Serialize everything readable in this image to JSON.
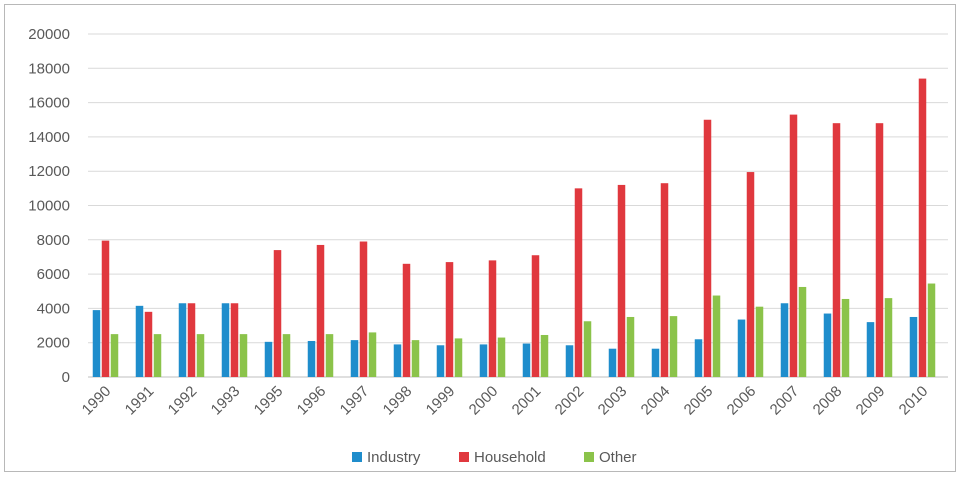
{
  "chart_data": {
    "type": "bar",
    "title": "",
    "xlabel": "",
    "ylabel": "",
    "ylim": [
      0,
      20000
    ],
    "yticks": [
      0,
      2000,
      4000,
      6000,
      8000,
      10000,
      12000,
      14000,
      16000,
      18000,
      20000
    ],
    "categories": [
      "1990",
      "1991",
      "1992",
      "1993",
      "1995",
      "1996",
      "1997",
      "1998",
      "1999",
      "2000",
      "2001",
      "2002",
      "2003",
      "2004",
      "2005",
      "2006",
      "2007",
      "2008",
      "2009",
      "2010"
    ],
    "series": [
      {
        "name": "Industry",
        "color": "#1f8dcc",
        "values": [
          3900,
          4150,
          4300,
          4300,
          2050,
          2100,
          2150,
          1900,
          1850,
          1900,
          1950,
          1850,
          1650,
          1650,
          2200,
          3350,
          4300,
          3700,
          3200,
          3500
        ]
      },
      {
        "name": "Household",
        "color": "#e0383e",
        "values": [
          7950,
          3800,
          4300,
          4300,
          7400,
          7700,
          7900,
          6600,
          6700,
          6800,
          7100,
          11000,
          11200,
          11300,
          15000,
          11950,
          15300,
          14800,
          14800,
          17400
        ]
      },
      {
        "name": "Other",
        "color": "#8bc34a",
        "values": [
          2500,
          2500,
          2500,
          2500,
          2500,
          2500,
          2600,
          2150,
          2250,
          2300,
          2450,
          3250,
          3500,
          3550,
          4750,
          4100,
          5250,
          4550,
          4600,
          5450
        ]
      }
    ],
    "grid": true,
    "legend_position": "bottom"
  }
}
